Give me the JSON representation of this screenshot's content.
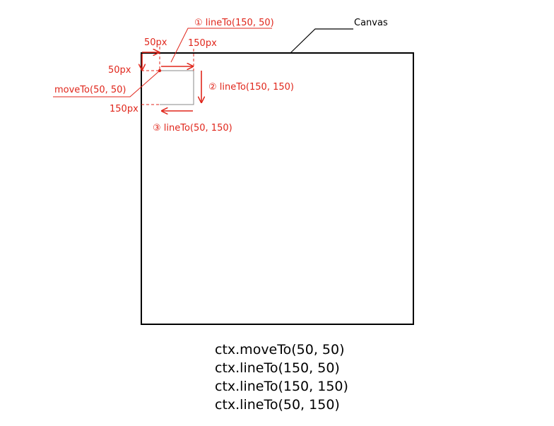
{
  "canvas_label": "Canvas",
  "annotations": {
    "step1": "① lineTo(150, 50)",
    "step2": "② lineTo(150, 150)",
    "step3": "③ lineTo(50, 150)",
    "move": "moveTo(50, 50)",
    "dim_x50": "50px",
    "dim_x150": "150px",
    "dim_y50": "50px",
    "dim_y150": "150px"
  },
  "code_lines": [
    "ctx.moveTo(50, 50)",
    "ctx.lineTo(150, 50)",
    "ctx.lineTo(150, 150)",
    "ctx.lineTo(50, 150)"
  ],
  "colors": {
    "accent": "#e0261b",
    "frame": "#000000",
    "path": "#888888"
  }
}
